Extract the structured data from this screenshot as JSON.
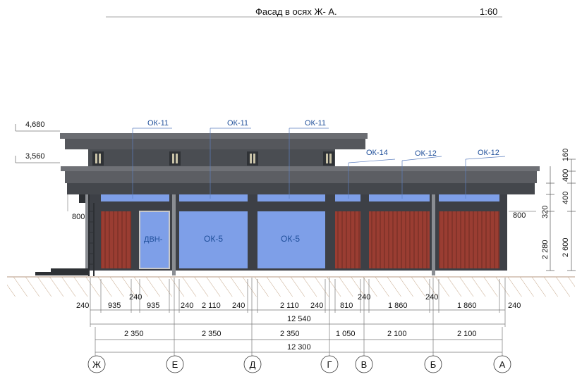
{
  "title": {
    "text": "Фасад в осях Ж- А.",
    "scale": "1:60"
  },
  "levels": {
    "top": "4,680",
    "second": "3,560"
  },
  "window_marks": {
    "upper": [
      "ОК-11",
      "ОК-11",
      "ОК-11"
    ],
    "lower": [
      "ОК-14",
      "ОК-12",
      "ОК-12"
    ],
    "wall": [
      "ДВН-",
      "ОК-5",
      "ОК-5"
    ]
  },
  "side_dims": {
    "left_800": "800",
    "right_800": "800",
    "right_col_outer": [
      "160",
      "400",
      "400",
      "2 600"
    ],
    "right_col_inner": [
      "320",
      "2 280"
    ]
  },
  "dims": {
    "row1_240_a": "240",
    "row1_240_b": "240",
    "row2": [
      "240",
      "935",
      "935",
      "240",
      "2 110",
      "240",
      "2 110",
      "240",
      "810",
      "1 860",
      "1 860",
      "240"
    ],
    "total1": "12 540",
    "row3": [
      "2 350",
      "2 350",
      "2 350",
      "1 050",
      "2 100",
      "2 100"
    ],
    "total2": "12 300"
  },
  "axes": [
    "Ж",
    "Е",
    "Д",
    "Г",
    "В",
    "Б",
    "А"
  ],
  "colors": {
    "structure": "#3d4046",
    "glass": "#7e9fe8",
    "cladding": "#9a3d32",
    "label": "#1f4f9a",
    "ground": "#c7a98c"
  }
}
